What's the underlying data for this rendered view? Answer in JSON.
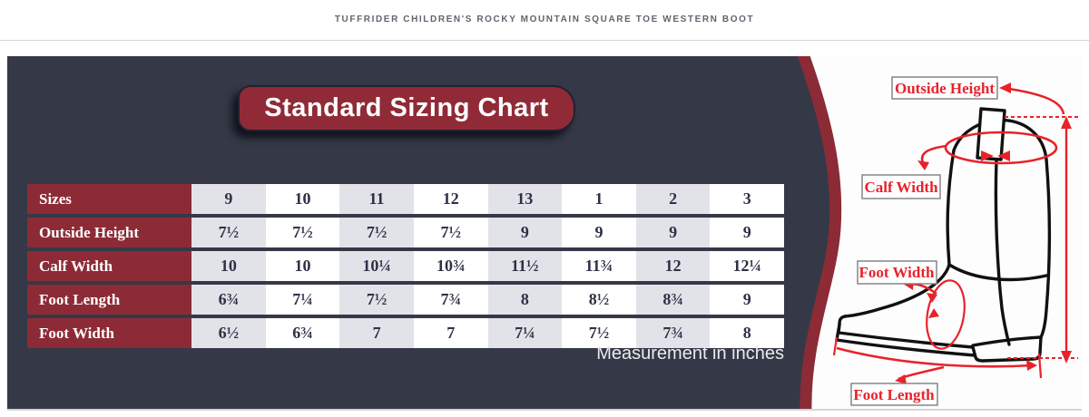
{
  "page": {
    "product_title": "TUFFRIDER CHILDREN'S ROCKY MOUNTAIN SQUARE TOE WESTERN BOOT"
  },
  "panel": {
    "banner_title": "Standard Sizing Chart",
    "note": "Measurement in inches"
  },
  "chart_data": {
    "type": "table",
    "title": "Standard Sizing Chart",
    "note": "Measurement in inches",
    "columns": [
      "Sizes",
      "9",
      "10",
      "11",
      "12",
      "13",
      "1",
      "2",
      "3"
    ],
    "rows": [
      {
        "label": "Sizes",
        "values": [
          "9",
          "10",
          "11",
          "12",
          "13",
          "1",
          "2",
          "3"
        ]
      },
      {
        "label": "Outside Height",
        "values": [
          "7½",
          "7½",
          "7½",
          "7½",
          "9",
          "9",
          "9",
          "9"
        ]
      },
      {
        "label": "Calf Width",
        "values": [
          "10",
          "10",
          "10¼",
          "10¾",
          "11½",
          "11¾",
          "12",
          "12¼"
        ]
      },
      {
        "label": "Foot Length",
        "values": [
          "6¾",
          "7¼",
          "7½",
          "7¾",
          "8",
          "8½",
          "8¾",
          "9"
        ]
      },
      {
        "label": "Foot Width",
        "values": [
          "6½",
          "6¾",
          "7",
          "7",
          "7¼",
          "7½",
          "7¾",
          "8"
        ]
      }
    ]
  },
  "diagram": {
    "labels": {
      "outside_height": "Outside Height",
      "calf_width": "Calf Width",
      "foot_width": "Foot Width",
      "foot_length": "Foot Length"
    }
  },
  "colors": {
    "navy": "#353947",
    "maroon": "#8c2b36",
    "banner_red": "#912a37",
    "annotation_red": "#e8222a",
    "cell_gray": "#e2e2e9",
    "cell_text": "#2c3145"
  }
}
